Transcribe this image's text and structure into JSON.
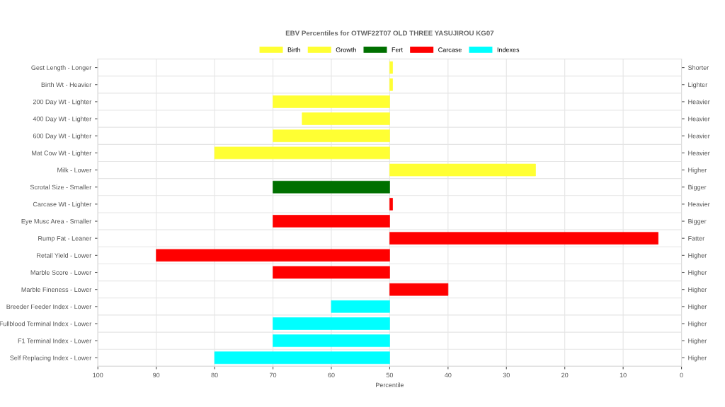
{
  "chart_data": {
    "type": "bar",
    "orientation": "horizontal",
    "title": "EBV Percentiles for OTWF22T07 OLD THREE YASUJIROU KG07",
    "xlabel": "Percentile",
    "categories": [
      "Gest Length - Longer",
      "Birth Wt - Heavier",
      "200 Day Wt - Lighter",
      "400 Day Wt - Lighter",
      "600 Day Wt - Lighter",
      "Mat Cow Wt - Lighter",
      "Milk - Lower",
      "Scrotal Size - Smaller",
      "Carcase Wt - Lighter",
      "Eye Musc Area - Smaller",
      "Rump Fat - Leaner",
      "Retail Yield - Lower",
      "Marble Score - Lower",
      "Marble Fineness - Lower",
      "Breeder Feeder Index - Lower",
      "Fullblood Terminal Index - Lower",
      "F1 Terminal Index - Lower",
      "Self Replacing Index - Lower"
    ],
    "y2_categories": [
      "Shorter",
      "Lighter",
      "Heavier",
      "Heavier",
      "Heavier",
      "Heavier",
      "Higher",
      "Bigger",
      "Heavier",
      "Bigger",
      "Fatter",
      "Higher",
      "Higher",
      "Higher",
      "Higher",
      "Higher",
      "Higher",
      "Higher"
    ],
    "series": [
      {
        "name": "Birth",
        "color": "#ffff33",
        "base": [
          50,
          50,
          null,
          null,
          null,
          null,
          null,
          null,
          null,
          null,
          null,
          null,
          null,
          null,
          null,
          null,
          null,
          null
        ],
        "values": [
          -0.5,
          -0.5,
          null,
          null,
          null,
          null,
          null,
          null,
          null,
          null,
          null,
          null,
          null,
          null,
          null,
          null,
          null,
          null
        ]
      },
      {
        "name": "Growth",
        "color": "#ffff33",
        "base": [
          null,
          null,
          50,
          50,
          50,
          50,
          50,
          null,
          null,
          null,
          null,
          null,
          null,
          null,
          null,
          null,
          null,
          null
        ],
        "values": [
          null,
          null,
          20,
          15,
          20,
          30,
          -25,
          null,
          null,
          null,
          null,
          null,
          null,
          null,
          null,
          null,
          null,
          null
        ]
      },
      {
        "name": "Fert",
        "color": "#007000",
        "base": [
          null,
          null,
          null,
          null,
          null,
          null,
          null,
          50,
          null,
          null,
          null,
          null,
          null,
          null,
          null,
          null,
          null,
          null
        ],
        "values": [
          null,
          null,
          null,
          null,
          null,
          null,
          null,
          20,
          null,
          null,
          null,
          null,
          null,
          null,
          null,
          null,
          null,
          null
        ]
      },
      {
        "name": "Carcase",
        "color": "#ff0000",
        "base": [
          null,
          null,
          null,
          null,
          null,
          null,
          null,
          null,
          50,
          50,
          50,
          50,
          50,
          50,
          null,
          null,
          null,
          null
        ],
        "values": [
          null,
          null,
          null,
          null,
          null,
          null,
          null,
          null,
          -0.5,
          20,
          -46,
          40,
          20,
          -10,
          null,
          null,
          null,
          null
        ]
      },
      {
        "name": "Indexes",
        "color": "#00ffff",
        "base": [
          null,
          null,
          null,
          null,
          null,
          null,
          null,
          null,
          null,
          null,
          null,
          null,
          null,
          null,
          50,
          50,
          50,
          50
        ],
        "values": [
          null,
          null,
          null,
          null,
          null,
          null,
          null,
          null,
          null,
          null,
          null,
          null,
          null,
          null,
          10,
          20,
          20,
          30
        ]
      }
    ],
    "xlim": [
      100,
      0
    ],
    "xticks": [
      0,
      10,
      20,
      30,
      40,
      50,
      60,
      70,
      80,
      90,
      100
    ],
    "grid": true,
    "legend": "top"
  }
}
